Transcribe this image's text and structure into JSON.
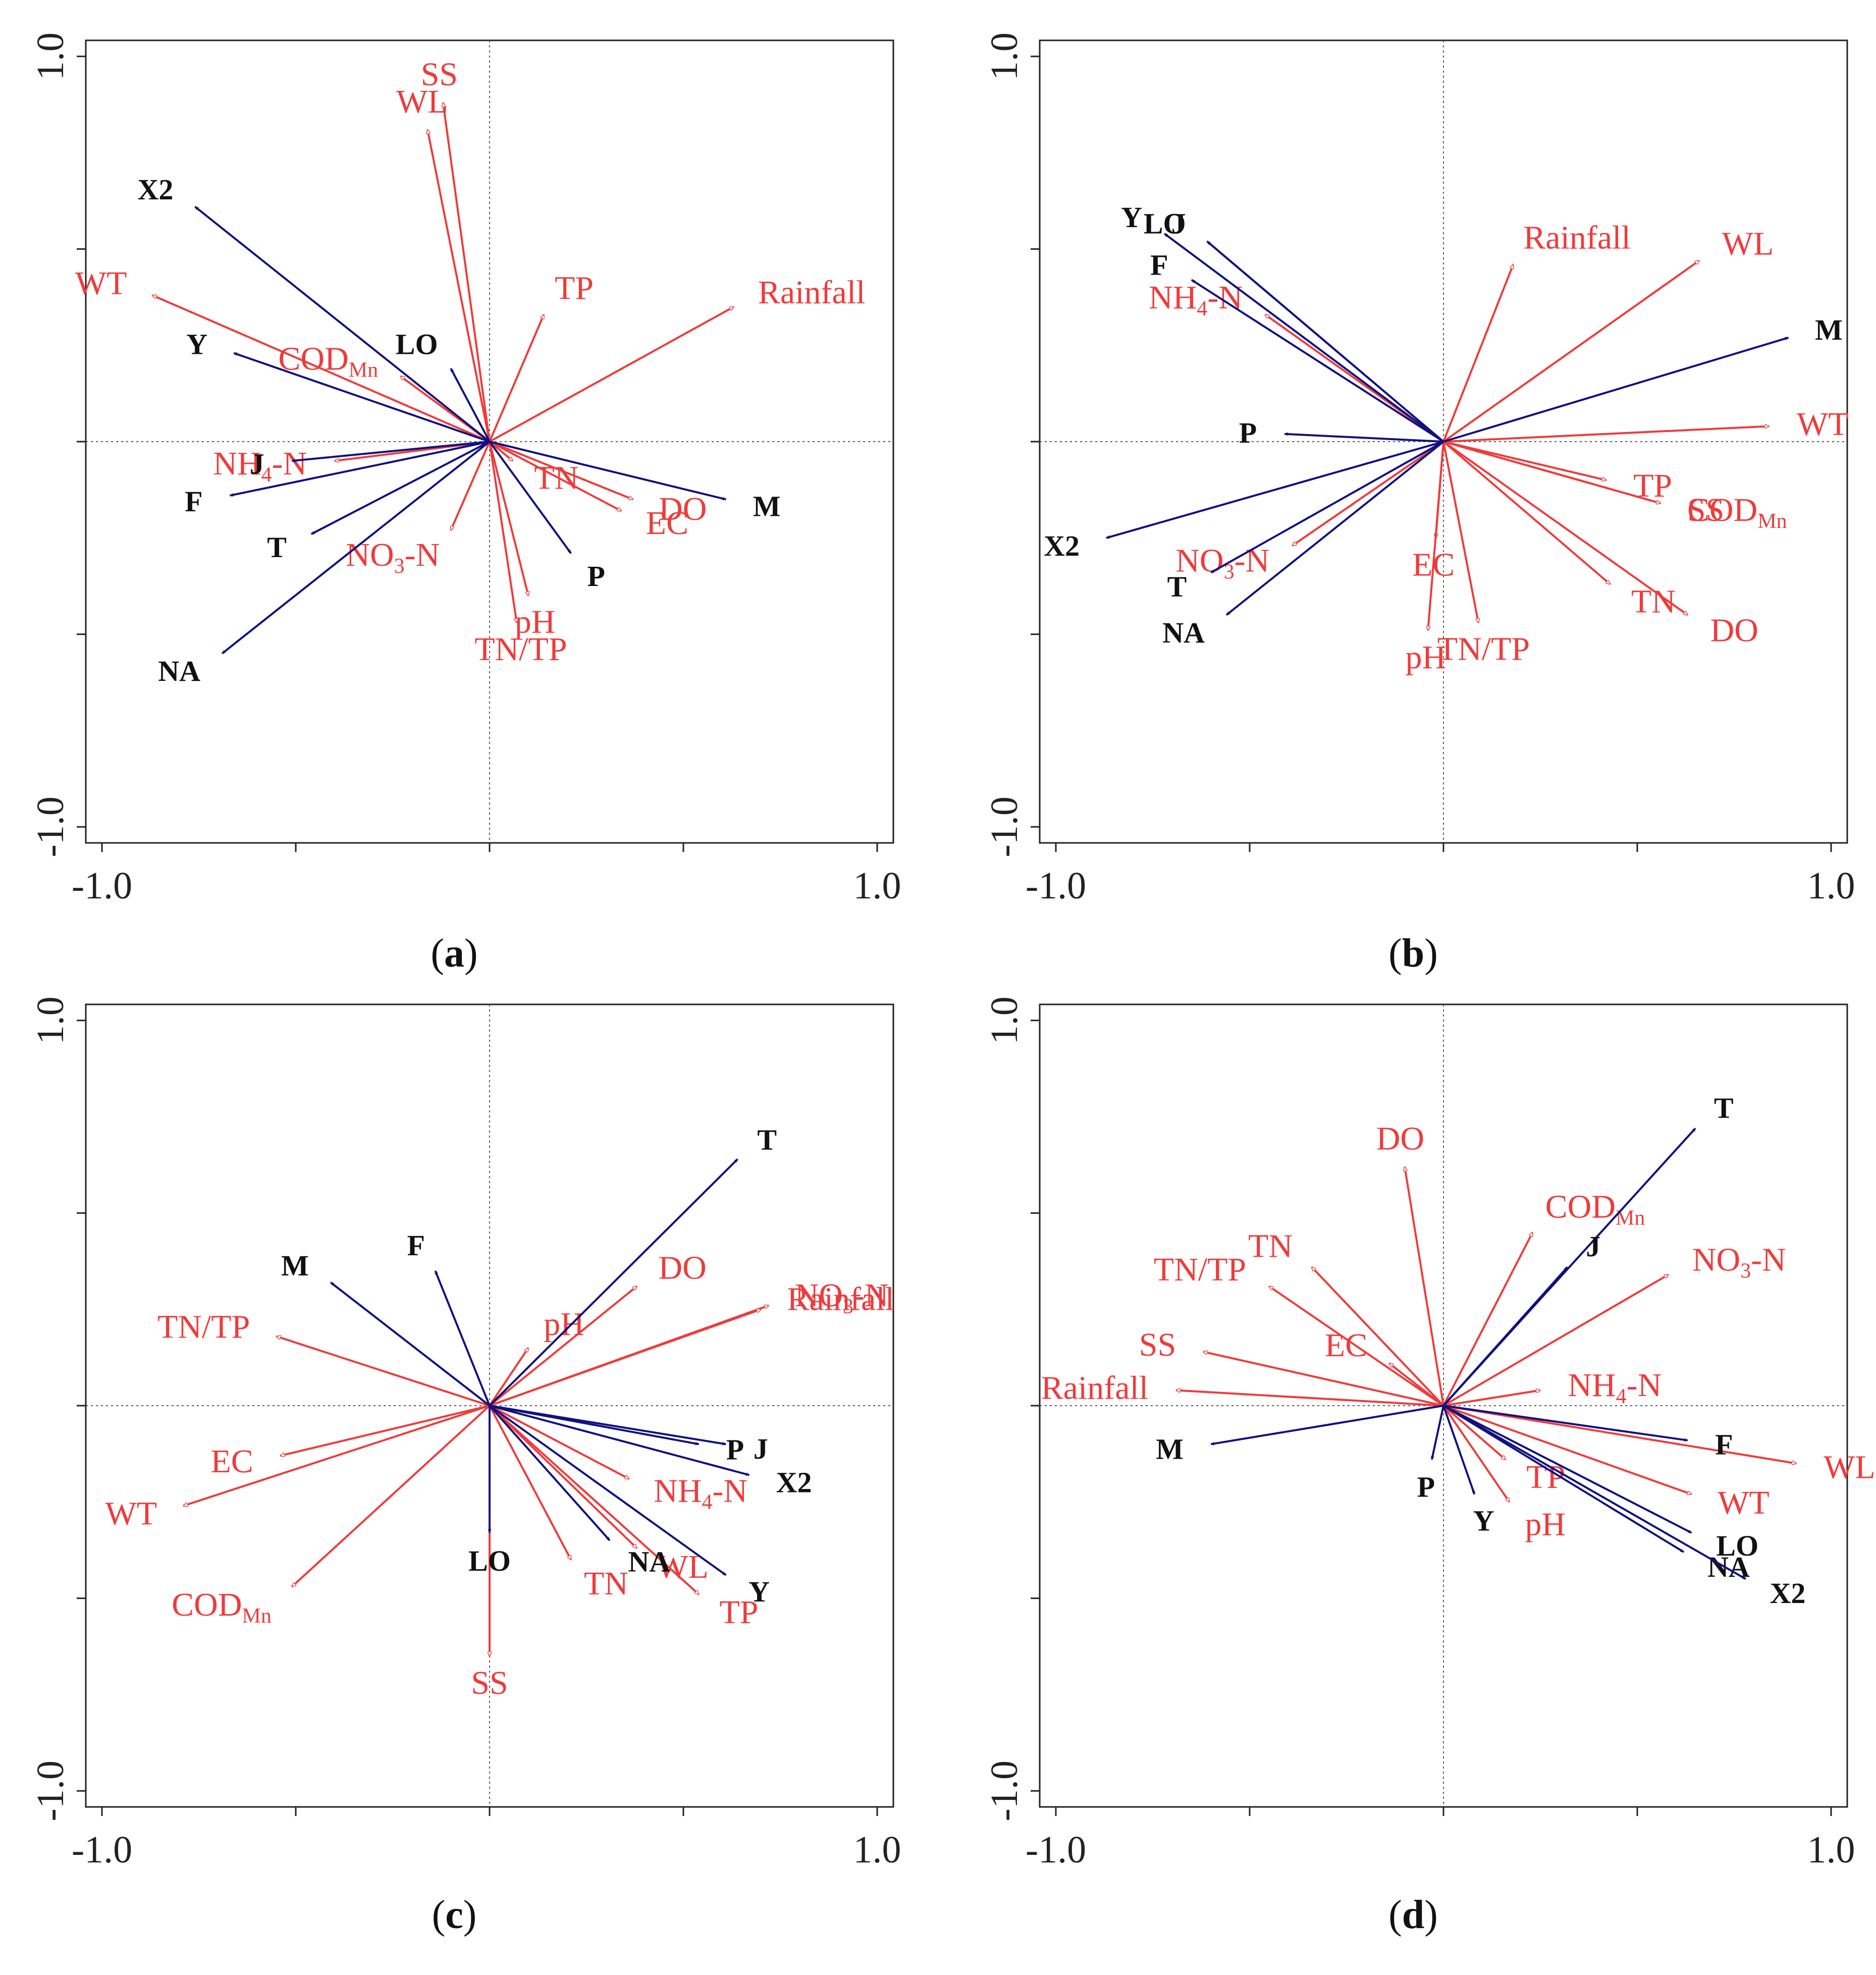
{
  "colors": {
    "env": "#ef3b3b",
    "species": "#101080",
    "frame": "#222222"
  },
  "axis_tick_labels": {
    "x_min": "-1.0",
    "x_max": "1.0",
    "y_min": "-1.0",
    "y_max": "1.0"
  },
  "chart_data": [
    {
      "type": "biplot",
      "panel_label": "a",
      "xlim": [
        -1,
        1
      ],
      "ylim": [
        -1,
        1
      ],
      "env": [
        {
          "label": "SS",
          "x": -0.12,
          "y": 0.88
        },
        {
          "label": "WL",
          "x": -0.16,
          "y": 0.81
        },
        {
          "label": "WT",
          "x": -0.87,
          "y": 0.38
        },
        {
          "label": "COD",
          "sub": "Mn",
          "x": -0.23,
          "y": 0.17
        },
        {
          "label": "TP",
          "x": 0.14,
          "y": 0.33
        },
        {
          "label": "Rainfall",
          "x": 0.63,
          "y": 0.35
        },
        {
          "label": "NH",
          "sub": "4",
          "suffix": "-N",
          "x": -0.4,
          "y": -0.05
        },
        {
          "label": "TN",
          "x": 0.06,
          "y": -0.05
        },
        {
          "label": "DO",
          "x": 0.37,
          "y": -0.15
        },
        {
          "label": "EC",
          "x": 0.34,
          "y": -0.18
        },
        {
          "label": "NO",
          "sub": "3",
          "suffix": "-N",
          "x": -0.1,
          "y": -0.23
        },
        {
          "label": "pH",
          "x": 0.1,
          "y": -0.4
        },
        {
          "label": "TN/TP",
          "x": 0.07,
          "y": -0.47
        }
      ],
      "species": [
        {
          "label": "X2",
          "x": -0.76,
          "y": 0.61
        },
        {
          "label": "Y",
          "x": -0.66,
          "y": 0.23
        },
        {
          "label": "LO",
          "x": -0.1,
          "y": 0.19
        },
        {
          "label": "J",
          "x": -0.51,
          "y": -0.05
        },
        {
          "label": "F",
          "x": -0.67,
          "y": -0.14
        },
        {
          "label": "T",
          "x": -0.46,
          "y": -0.24
        },
        {
          "label": "M",
          "x": 0.61,
          "y": -0.15
        },
        {
          "label": "P",
          "x": 0.21,
          "y": -0.29
        },
        {
          "label": "NA",
          "x": -0.69,
          "y": -0.55
        }
      ]
    },
    {
      "type": "biplot",
      "panel_label": "b",
      "xlim": [
        -1,
        1
      ],
      "ylim": [
        -1,
        1
      ],
      "env": [
        {
          "label": "Rainfall",
          "x": 0.18,
          "y": 0.46
        },
        {
          "label": "WL",
          "x": 0.66,
          "y": 0.47
        },
        {
          "label": "NH",
          "sub": "4",
          "suffix": "-N",
          "x": -0.46,
          "y": 0.33
        },
        {
          "label": "WT",
          "x": 0.84,
          "y": 0.04
        },
        {
          "label": "COD",
          "sub": "Mn",
          "x": 0.56,
          "y": -0.16
        },
        {
          "label": "TP",
          "x": 0.42,
          "y": -0.1
        },
        {
          "label": "SS",
          "x": 0.56,
          "y": -0.16
        },
        {
          "label": "TN",
          "x": 0.43,
          "y": -0.37
        },
        {
          "label": "DO",
          "x": 0.63,
          "y": -0.45
        },
        {
          "label": "EC",
          "x": -0.02,
          "y": -0.25
        },
        {
          "label": "pH",
          "x": -0.04,
          "y": -0.49
        },
        {
          "label": "TN/TP",
          "x": 0.09,
          "y": -0.47
        },
        {
          "label": "NO",
          "sub": "3",
          "suffix": "-N",
          "x": -0.39,
          "y": -0.27
        }
      ],
      "species": [
        {
          "label": "Y",
          "x": -0.72,
          "y": 0.54
        },
        {
          "label": "J",
          "x": -0.61,
          "y": 0.52
        },
        {
          "label": "LO",
          "x": -0.61,
          "y": 0.52
        },
        {
          "label": "F",
          "x": -0.65,
          "y": 0.42
        },
        {
          "label": "M",
          "x": 0.89,
          "y": 0.27
        },
        {
          "label": "P",
          "x": -0.41,
          "y": 0.02
        },
        {
          "label": "X2",
          "x": -0.87,
          "y": -0.25
        },
        {
          "label": "T",
          "x": -0.6,
          "y": -0.34
        },
        {
          "label": "NA",
          "x": -0.56,
          "y": -0.45
        }
      ]
    },
    {
      "type": "biplot",
      "panel_label": "c",
      "xlim": [
        -1,
        1
      ],
      "ylim": [
        -1,
        1
      ],
      "env": [
        {
          "label": "DO",
          "x": 0.38,
          "y": 0.31
        },
        {
          "label": "NO",
          "sub": "3",
          "suffix": "-N",
          "x": 0.72,
          "y": 0.26
        },
        {
          "label": "Rainfall",
          "x": 0.7,
          "y": 0.25
        },
        {
          "label": "pH",
          "x": 0.1,
          "y": 0.15
        },
        {
          "label": "TN/TP",
          "x": -0.55,
          "y": 0.18
        },
        {
          "label": "EC",
          "x": -0.54,
          "y": -0.13
        },
        {
          "label": "WT",
          "x": -0.79,
          "y": -0.26
        },
        {
          "label": "COD",
          "sub": "Mn",
          "x": -0.51,
          "y": -0.47
        },
        {
          "label": "NH",
          "sub": "4",
          "suffix": "-N",
          "x": 0.36,
          "y": -0.19
        },
        {
          "label": "WL",
          "x": 0.38,
          "y": -0.37
        },
        {
          "label": "TN",
          "x": 0.21,
          "y": -0.4
        },
        {
          "label": "TP",
          "x": 0.54,
          "y": -0.49
        },
        {
          "label": "SS",
          "x": 0.0,
          "y": -0.65
        }
      ],
      "species": [
        {
          "label": "T",
          "x": 0.64,
          "y": 0.64
        },
        {
          "label": "M",
          "x": -0.41,
          "y": 0.32
        },
        {
          "label": "F",
          "x": -0.14,
          "y": 0.35
        },
        {
          "label": "P",
          "x": 0.54,
          "y": -0.1
        },
        {
          "label": "J",
          "x": 0.61,
          "y": -0.1
        },
        {
          "label": "X2",
          "x": 0.67,
          "y": -0.18
        },
        {
          "label": "NA",
          "x": 0.31,
          "y": -0.35
        },
        {
          "label": "Y",
          "x": 0.61,
          "y": -0.44
        },
        {
          "label": "LO",
          "x": 0.0,
          "y": -0.33
        }
      ]
    },
    {
      "type": "biplot",
      "panel_label": "d",
      "xlim": [
        -1,
        1
      ],
      "ylim": [
        -1,
        1
      ],
      "env": [
        {
          "label": "DO",
          "x": -0.1,
          "y": 0.62
        },
        {
          "label": "COD",
          "sub": "Mn",
          "x": 0.23,
          "y": 0.45
        },
        {
          "label": "TN",
          "x": -0.34,
          "y": 0.36
        },
        {
          "label": "TN/TP",
          "x": -0.45,
          "y": 0.31
        },
        {
          "label": "NO",
          "sub": "3",
          "suffix": "-N",
          "x": 0.58,
          "y": 0.34
        },
        {
          "label": "SS",
          "x": -0.62,
          "y": 0.14
        },
        {
          "label": "Rainfall",
          "x": -0.69,
          "y": 0.04
        },
        {
          "label": "EC",
          "x": -0.14,
          "y": 0.11
        },
        {
          "label": "NH",
          "sub": "4",
          "suffix": "-N",
          "x": 0.25,
          "y": 0.04
        },
        {
          "label": "TP",
          "x": 0.16,
          "y": -0.14
        },
        {
          "label": "pH",
          "x": 0.17,
          "y": -0.25
        },
        {
          "label": "WT",
          "x": 0.64,
          "y": -0.23
        },
        {
          "label": "WL",
          "x": 0.91,
          "y": -0.15
        }
      ],
      "species": [
        {
          "label": "T",
          "x": 0.65,
          "y": 0.72
        },
        {
          "label": "J",
          "x": 0.32,
          "y": 0.36
        },
        {
          "label": "F",
          "x": 0.63,
          "y": -0.09
        },
        {
          "label": "M",
          "x": -0.6,
          "y": -0.1
        },
        {
          "label": "P",
          "x": -0.03,
          "y": -0.14
        },
        {
          "label": "Y",
          "x": 0.08,
          "y": -0.23
        },
        {
          "label": "LO",
          "x": 0.64,
          "y": -0.33
        },
        {
          "label": "NA",
          "x": 0.62,
          "y": -0.38
        },
        {
          "label": "X2",
          "x": 0.78,
          "y": -0.45
        }
      ]
    }
  ]
}
